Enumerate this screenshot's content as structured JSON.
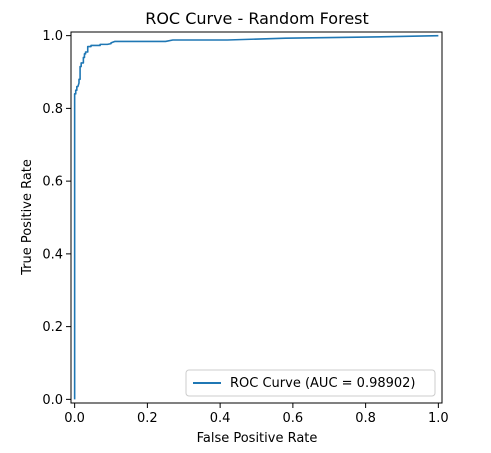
{
  "chart_data": {
    "type": "line",
    "title": "ROC Curve - Random Forest",
    "xlabel": "False Positive Rate",
    "ylabel": "True Positive Rate",
    "xlim": [
      -0.01,
      1.01
    ],
    "ylim": [
      -0.01,
      1.01
    ],
    "xticks": [
      0.0,
      0.2,
      0.4,
      0.6,
      0.8,
      1.0
    ],
    "yticks": [
      0.0,
      0.2,
      0.4,
      0.6,
      0.8,
      1.0
    ],
    "xtick_labels": [
      "0.0",
      "0.2",
      "0.4",
      "0.6",
      "0.8",
      "1.0"
    ],
    "ytick_labels": [
      "0.0",
      "0.2",
      "0.4",
      "0.6",
      "0.8",
      "1.0"
    ],
    "grid": false,
    "legend_position": "lower-right",
    "series": [
      {
        "name": "ROC Curve (AUC = 0.98902)",
        "color": "#1f77b4",
        "x": [
          0.0,
          0.0,
          0.003,
          0.003,
          0.006,
          0.006,
          0.009,
          0.012,
          0.012,
          0.015,
          0.015,
          0.018,
          0.018,
          0.024,
          0.024,
          0.027,
          0.027,
          0.03,
          0.03,
          0.036,
          0.036,
          0.045,
          0.045,
          0.055,
          0.07,
          0.07,
          0.09,
          0.1,
          0.1,
          0.11,
          0.12,
          0.25,
          0.27,
          0.42,
          0.58,
          0.8,
          1.0
        ],
        "y": [
          0.0,
          0.84,
          0.84,
          0.85,
          0.85,
          0.86,
          0.86,
          0.87,
          0.88,
          0.88,
          0.915,
          0.915,
          0.925,
          0.925,
          0.94,
          0.94,
          0.95,
          0.95,
          0.955,
          0.955,
          0.97,
          0.97,
          0.973,
          0.973,
          0.973,
          0.976,
          0.976,
          0.978,
          0.98,
          0.984,
          0.984,
          0.984,
          0.988,
          0.988,
          0.993,
          0.996,
          1.0
        ]
      }
    ]
  }
}
